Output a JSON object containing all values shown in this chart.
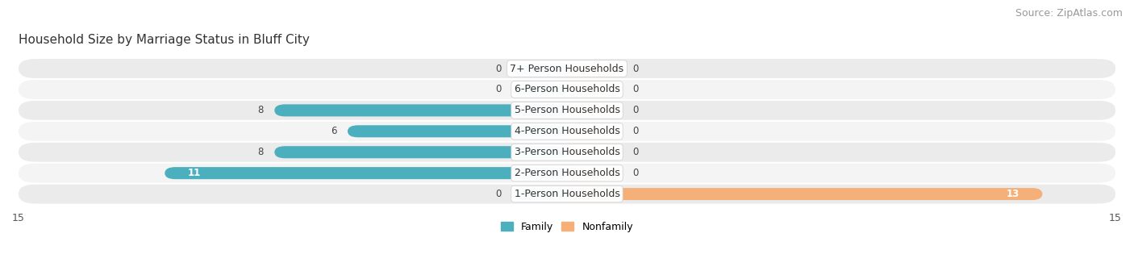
{
  "title": "Household Size by Marriage Status in Bluff City",
  "source": "Source: ZipAtlas.com",
  "categories": [
    "7+ Person Households",
    "6-Person Households",
    "5-Person Households",
    "4-Person Households",
    "3-Person Households",
    "2-Person Households",
    "1-Person Households"
  ],
  "family_values": [
    0,
    0,
    8,
    6,
    8,
    11,
    0
  ],
  "nonfamily_values": [
    0,
    0,
    0,
    0,
    0,
    0,
    13
  ],
  "family_color": "#4BAFBE",
  "nonfamily_color": "#F5B07A",
  "stub_color_family": "#7DCCD8",
  "stub_color_nonfamily": "#F8C99A",
  "row_bg_color": "#ECECEC",
  "row_border_color": "#DEDEDE",
  "xlim": 15,
  "stub_size": 1.5,
  "label_fontsize": 9,
  "title_fontsize": 11,
  "source_fontsize": 9,
  "category_fontsize": 9,
  "value_fontsize": 8.5,
  "bar_height": 0.58
}
